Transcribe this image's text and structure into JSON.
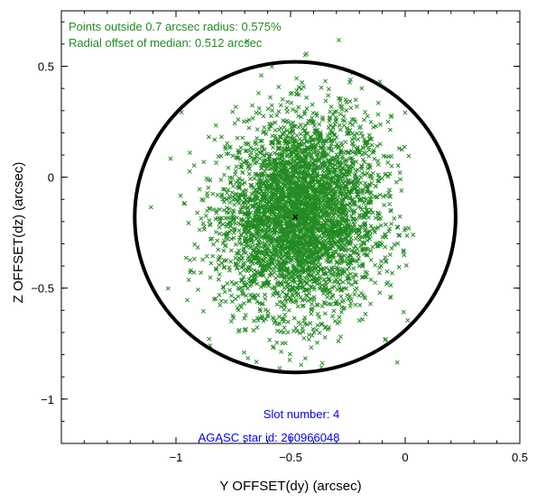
{
  "chart_data": {
    "type": "scatter",
    "title": "",
    "xlabel": "Y OFFSET(dy) (arcsec)",
    "ylabel": "Z OFFSET(dz) (arcsec)",
    "xlim": [
      -1.5,
      0.5
    ],
    "ylim": [
      -1.2,
      0.75
    ],
    "x_ticks": [
      {
        "value": -1.0,
        "label": "−1"
      },
      {
        "value": -0.5,
        "label": "−0.5"
      },
      {
        "value": 0.0,
        "label": "0"
      },
      {
        "value": 0.5,
        "label": "0.5"
      }
    ],
    "y_ticks": [
      {
        "value": -1.0,
        "label": "−1"
      },
      {
        "value": -0.5,
        "label": "−0.5"
      },
      {
        "value": 0.0,
        "label": "0"
      },
      {
        "value": 0.5,
        "label": "0.5"
      }
    ],
    "grid": false,
    "scatter": {
      "marker": "x",
      "color": "#228B22",
      "cloud_center": [
        -0.47,
        -0.17
      ],
      "cloud_spread": [
        0.17,
        0.22
      ]
    },
    "median": {
      "x": -0.48,
      "y": -0.18,
      "color": "#000000"
    },
    "circle": {
      "center_x": -0.48,
      "center_y": -0.18,
      "radius": 0.7,
      "color": "#000000"
    },
    "annotations": [
      {
        "text": "Points outside 0.7 arcsec radius: 0.575%",
        "color": "#228B22"
      },
      {
        "text": "Radial offset of median: 0.512 arcsec",
        "color": "#228B22"
      },
      {
        "text": "Slot number: 4",
        "color": "#0000FF"
      },
      {
        "text": "AGASC star id: 260966048",
        "color": "#0000FF"
      }
    ]
  }
}
